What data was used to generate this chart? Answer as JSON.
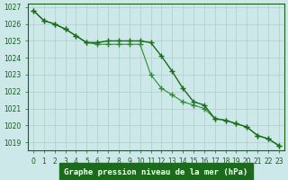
{
  "series1": [
    1026.8,
    1026.2,
    1026.0,
    1025.7,
    1025.3,
    1024.9,
    1024.9,
    1025.0,
    1025.0,
    1025.0,
    1025.0,
    1024.9,
    1024.1,
    1023.2,
    1022.2,
    1021.4,
    1021.2,
    1020.4,
    1020.3,
    1020.1,
    1019.9,
    1019.4,
    1019.2,
    1018.8
  ],
  "series2": [
    1026.8,
    1026.2,
    1026.0,
    1025.7,
    1025.3,
    1024.9,
    1024.8,
    1024.8,
    1024.8,
    1024.8,
    1024.8,
    1023.0,
    1022.2,
    1021.8,
    1021.4,
    1021.2,
    1021.0,
    1020.4,
    1020.3,
    1020.1,
    1019.9,
    1019.4,
    1019.2,
    1018.8
  ],
  "x": [
    0,
    1,
    2,
    3,
    4,
    5,
    6,
    7,
    8,
    9,
    10,
    11,
    12,
    13,
    14,
    15,
    16,
    17,
    18,
    19,
    20,
    21,
    22,
    23
  ],
  "ylim": [
    1018.5,
    1027.2
  ],
  "yticks": [
    1019,
    1020,
    1021,
    1022,
    1023,
    1024,
    1025,
    1026,
    1027
  ],
  "xlabel": "Graphe pression niveau de la mer (hPa)",
  "line_color1": "#1a6b1a",
  "line_color2": "#2d8c2d",
  "bg_color": "#cce8e8",
  "grid_color": "#b0cccc",
  "label_color": "#1a5c1a",
  "title_bg": "#1a6b1a",
  "title_fg": "#ffffff"
}
